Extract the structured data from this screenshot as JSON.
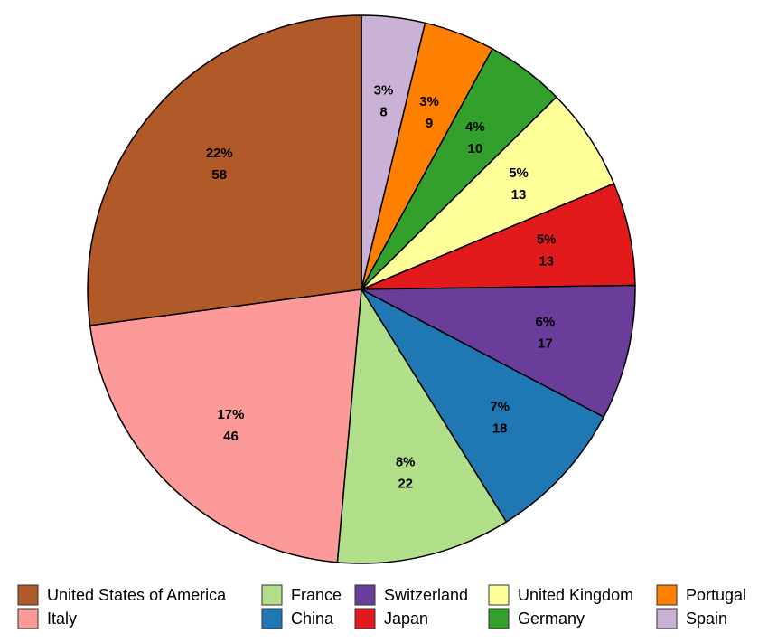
{
  "chart_data": {
    "type": "pie",
    "categories": [
      "Spain",
      "Portugal",
      "Germany",
      "United Kingdom",
      "Japan",
      "Switzerland",
      "China",
      "France",
      "Italy",
      "United States of America"
    ],
    "values": [
      8,
      9,
      10,
      13,
      13,
      17,
      18,
      22,
      46,
      58
    ],
    "percent_labels": [
      "3%",
      "3%",
      "4%",
      "5%",
      "5%",
      "6%",
      "7%",
      "8%",
      "17%",
      "22%"
    ],
    "colors": [
      "#cab2d6",
      "#ff7f00",
      "#33a02c",
      "#ffff99",
      "#e31a1c",
      "#6a3d9a",
      "#1f78b4",
      "#b2df8a",
      "#fb9a99",
      "#b15928"
    ],
    "legend": "bottom"
  }
}
